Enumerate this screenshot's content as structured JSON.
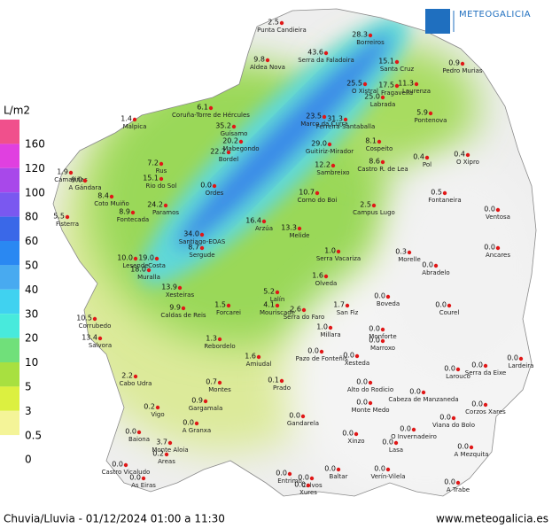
{
  "header": {
    "logo_text": "METEOGALICIA"
  },
  "legend": {
    "title": "L/m2",
    "labels": [
      "160",
      "120",
      "100",
      "80",
      "60",
      "50",
      "40",
      "30",
      "20",
      "10",
      "5",
      "3",
      "0.5",
      "0"
    ],
    "colors": [
      "#f0508c",
      "#e040e0",
      "#a848ea",
      "#7a58f0",
      "#3a68e8",
      "#2a88f2",
      "#48aaf0",
      "#40d2f0",
      "#48eadc",
      "#70e07a",
      "#a8e040",
      "#dcf040",
      "#f4f498",
      "#ffffff"
    ]
  },
  "stations": [
    {
      "name": "Punta Candieira",
      "value": "2.5"
    },
    {
      "name": "Serra da Faladoira",
      "value": "43.6"
    },
    {
      "name": "Borreiros",
      "value": "28.3"
    },
    {
      "name": "Pedro Murias",
      "value": "0.9"
    },
    {
      "name": "Santa Cruz",
      "value": "15.1"
    },
    {
      "name": "Aldea Nova",
      "value": "9.8"
    },
    {
      "name": "O Xistral",
      "value": "25.5"
    },
    {
      "name": "Fragavella",
      "value": "17.5"
    },
    {
      "name": "Laurenza",
      "value": "11.3"
    },
    {
      "name": "Labrada",
      "value": "25.0"
    },
    {
      "name": "Pontenova",
      "value": "5.9"
    },
    {
      "name": "Coruña-Torre de Hércules",
      "value": "6.1"
    },
    {
      "name": "Marco da Curra",
      "value": "23.5"
    },
    {
      "name": "Ferreira-Santaballa",
      "value": "31.3"
    },
    {
      "name": "Guísamo",
      "value": "35.2"
    },
    {
      "name": "Mabegondo",
      "value": "20.2"
    },
    {
      "name": "Bordel",
      "value": "22.2"
    },
    {
      "name": "Guitiriz-Mirador",
      "value": "29.0"
    },
    {
      "name": "Cospeito",
      "value": "8.1"
    },
    {
      "name": "Sambreixo",
      "value": "12.2"
    },
    {
      "name": "Castro R. de Lea",
      "value": "8.6"
    },
    {
      "name": "Pol",
      "value": "0.4"
    },
    {
      "name": "O Xipro",
      "value": "0.4"
    },
    {
      "name": "Malpica",
      "value": "1.4"
    },
    {
      "name": "Camariñas",
      "value": "1.9"
    },
    {
      "name": "A Gándara",
      "value": "9.0"
    },
    {
      "name": "Rus",
      "value": "7.2"
    },
    {
      "name": "Rio do Sol",
      "value": "15.1"
    },
    {
      "name": "Coto Muiño",
      "value": "8.4"
    },
    {
      "name": "Ordes",
      "value": "0.0"
    },
    {
      "name": "Corno do Boi",
      "value": "10.7"
    },
    {
      "name": "Campus Lugo",
      "value": "2.5"
    },
    {
      "name": "Fontaneira",
      "value": "0.5"
    },
    {
      "name": "Ventosa",
      "value": "0.0"
    },
    {
      "name": "Fisterra",
      "value": "5.5"
    },
    {
      "name": "Fontecada",
      "value": "8.9"
    },
    {
      "name": "Paramos",
      "value": "24.2"
    },
    {
      "name": "Arzúa",
      "value": "16.4"
    },
    {
      "name": "Melide",
      "value": "13.3"
    },
    {
      "name": "Santiago-EOAS",
      "value": "34.0"
    },
    {
      "name": "Sergude",
      "value": "8.7"
    },
    {
      "name": "Ancares",
      "value": "0.0"
    },
    {
      "name": "Lesende",
      "value": "10.0"
    },
    {
      "name": "Costa",
      "value": "19.0"
    },
    {
      "name": "Serra Vacariza",
      "value": "1.0"
    },
    {
      "name": "Morelle",
      "value": "0.3"
    },
    {
      "name": "Abradelo",
      "value": "0.0"
    },
    {
      "name": "Muralla",
      "value": "18.0"
    },
    {
      "name": "Xesteiras",
      "value": "13.9"
    },
    {
      "name": "Lalín",
      "value": "5.2"
    },
    {
      "name": "Olveda",
      "value": "1.6"
    },
    {
      "name": "Boveda",
      "value": "0.0"
    },
    {
      "name": "Courel",
      "value": "0.0"
    },
    {
      "name": "Forcarei",
      "value": "1.5"
    },
    {
      "name": "Mouriscade",
      "value": "4.1"
    },
    {
      "name": "San Fiz",
      "value": "1.7"
    },
    {
      "name": "Caldas de Reis",
      "value": "9.9"
    },
    {
      "name": "Serra do Faro",
      "value": "2.6"
    },
    {
      "name": "Corrubedo",
      "value": "10.5"
    },
    {
      "name": "Millara",
      "value": "1.0"
    },
    {
      "name": "Monforte",
      "value": "0.0"
    },
    {
      "name": "Marroxo",
      "value": "0.0"
    },
    {
      "name": "Salvora",
      "value": "13.4"
    },
    {
      "name": "Rebordelo",
      "value": "1.3"
    },
    {
      "name": "Amiudal",
      "value": "1.6"
    },
    {
      "name": "Pazo de Fonteñis",
      "value": "0.0"
    },
    {
      "name": "Xesteda",
      "value": "0.0"
    },
    {
      "name": "Larouco",
      "value": "0.0"
    },
    {
      "name": "Serra da Eixe",
      "value": "0.0"
    },
    {
      "name": "Lardeira",
      "value": "0.0"
    },
    {
      "name": "Alto do Rodicio",
      "value": "0.0"
    },
    {
      "name": "Cabeza de Manzaneda",
      "value": "0.0"
    },
    {
      "name": "Monte Medo",
      "value": "0.0"
    },
    {
      "name": "Corzos Xares",
      "value": "0.0"
    },
    {
      "name": "Cabo Udra",
      "value": "2.2"
    },
    {
      "name": "Montes",
      "value": "0.7"
    },
    {
      "name": "Prado",
      "value": "0.1"
    },
    {
      "name": "Gargamala",
      "value": "0.9"
    },
    {
      "name": "Gandarela",
      "value": "0.0"
    },
    {
      "name": "Xinzo",
      "value": "0.0"
    },
    {
      "name": "Viana do Bolo",
      "value": "0.0"
    },
    {
      "name": "Vigo",
      "value": "0.2"
    },
    {
      "name": "Baiona",
      "value": "0.0"
    },
    {
      "name": "Monte Aloia",
      "value": "3.7"
    },
    {
      "name": "Areas",
      "value": "0.2"
    },
    {
      "name": "A Granxa",
      "value": "0.0"
    },
    {
      "name": "O Invernadeiro",
      "value": "0.0"
    },
    {
      "name": "Lasa",
      "value": "0.0"
    },
    {
      "name": "A Mezquita",
      "value": "0.0"
    },
    {
      "name": "Castro Vicaludo",
      "value": "0.0"
    },
    {
      "name": "As Eiras",
      "value": "0.0"
    },
    {
      "name": "Entrimo",
      "value": "0.0"
    },
    {
      "name": "Calvos",
      "value": "0.0"
    },
    {
      "name": "Baltar",
      "value": "0.0"
    },
    {
      "name": "Verín-Vilela",
      "value": "0.0"
    },
    {
      "name": "Xures",
      "value": "0.0"
    },
    {
      "name": "A Trabe",
      "value": "0.0"
    }
  ],
  "footer": {
    "caption": "Chuvia/Lluvia - 01/12/2024 01:00 a 11:30",
    "url": "www.meteogalicia.es"
  }
}
